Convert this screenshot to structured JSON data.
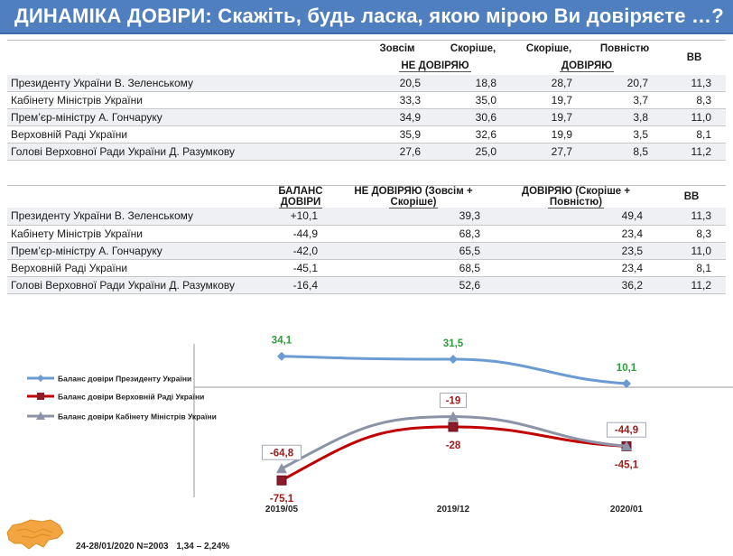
{
  "title": "ДИНАМІКА ДОВІРИ: Скажіть, будь ласка, якою мірою Ви довіряєте …?",
  "table1": {
    "headers": {
      "col1": "Зовсім",
      "col2": "Скоріше,",
      "group1": "НЕ ДОВІРЯЮ",
      "col3": "Скоріше,",
      "col4": "Повністю",
      "group2": "ДОВІРЯЮ",
      "col5": "ВВ"
    },
    "rows": [
      {
        "label": "Президенту України В. Зеленському",
        "v1": "20,5",
        "v2": "18,8",
        "v3": "28,7",
        "v4": "20,7",
        "v5": "11,3"
      },
      {
        "label": "Кабінету Міністрів України",
        "v1": "33,3",
        "v2": "35,0",
        "v3": "19,7",
        "v4": "3,7",
        "v5": "8,3"
      },
      {
        "label": "Прем’єр-міністру А. Гончаруку",
        "v1": "34,9",
        "v2": "30,6",
        "v3": "19,7",
        "v4": "3,8",
        "v5": "11,0"
      },
      {
        "label": "Верховній Раді України",
        "v1": "35,9",
        "v2": "32,6",
        "v3": "19,9",
        "v4": "3,5",
        "v5": "8,1"
      },
      {
        "label": "Голові Верховної Ради України Д. Разумкову",
        "v1": "27,6",
        "v2": "25,0",
        "v3": "27,7",
        "v4": "8,5",
        "v5": "11,2"
      }
    ]
  },
  "table2": {
    "headers": {
      "col1_line1": "БАЛАНС",
      "col1_line2": "ДОВІРИ",
      "col2_line1": "НЕ ДОВІРЯЮ (Зовсім +",
      "col2_line2": "Скоріше)",
      "col3_line1": "ДОВІРЯЮ (Скоріше +",
      "col3_line2": "Повністю)",
      "col4": "ВВ"
    },
    "rows": [
      {
        "label": "Президенту України В. Зеленському",
        "v1": "+10,1",
        "v2": "39,3",
        "v3": "49,4",
        "v4": "11,3"
      },
      {
        "label": "Кабінету Міністрів України",
        "v1": "-44,9",
        "v2": "68,3",
        "v3": "23,4",
        "v4": "8,3"
      },
      {
        "label": "Прем’єр-міністру А. Гончаруку",
        "v1": "-42,0",
        "v2": "65,5",
        "v3": "23,5",
        "v4": "11,0"
      },
      {
        "label": "Верховній Раді України",
        "v1": "-45,1",
        "v2": "68,5",
        "v3": "23,4",
        "v4": "8,1"
      },
      {
        "label": "Голові Верховної Ради України Д. Разумкову",
        "v1": "-16,4",
        "v2": "52,6",
        "v3": "36,2",
        "v4": "11,2"
      }
    ]
  },
  "chart_data": {
    "type": "line",
    "categories": [
      "2019/05",
      "2019/12",
      "2020/01"
    ],
    "ylim": [
      -90,
      45
    ],
    "series": [
      {
        "name": "Баланс довіри Президенту України",
        "color": "#6b9bd1",
        "label_color": "#2e9e3c",
        "marker": "diamond",
        "values": [
          34.1,
          31.5,
          10.1
        ],
        "labels": [
          "34,1",
          "31,5",
          "10,1"
        ]
      },
      {
        "name": "Баланс довіри Верховній Раді України",
        "color": "#c00000",
        "label_color": "#9e1b1b",
        "marker": "square",
        "values": [
          -75.1,
          -28,
          -45.1
        ],
        "labels": [
          "-75,1",
          "-28",
          "-45,1"
        ]
      },
      {
        "name": "Баланс довіри Кабінету Міністрів України",
        "color": "#8c93a6",
        "label_color": "#9e1b1b",
        "marker": "triangle",
        "values": [
          -64.8,
          -19,
          -44.9
        ],
        "labels": [
          "-64,8",
          "-19",
          "-44,9"
        ]
      }
    ]
  },
  "footer": {
    "dates": "24-28/01/2020 N=2003",
    "error": "1,34 – 2,24%"
  }
}
